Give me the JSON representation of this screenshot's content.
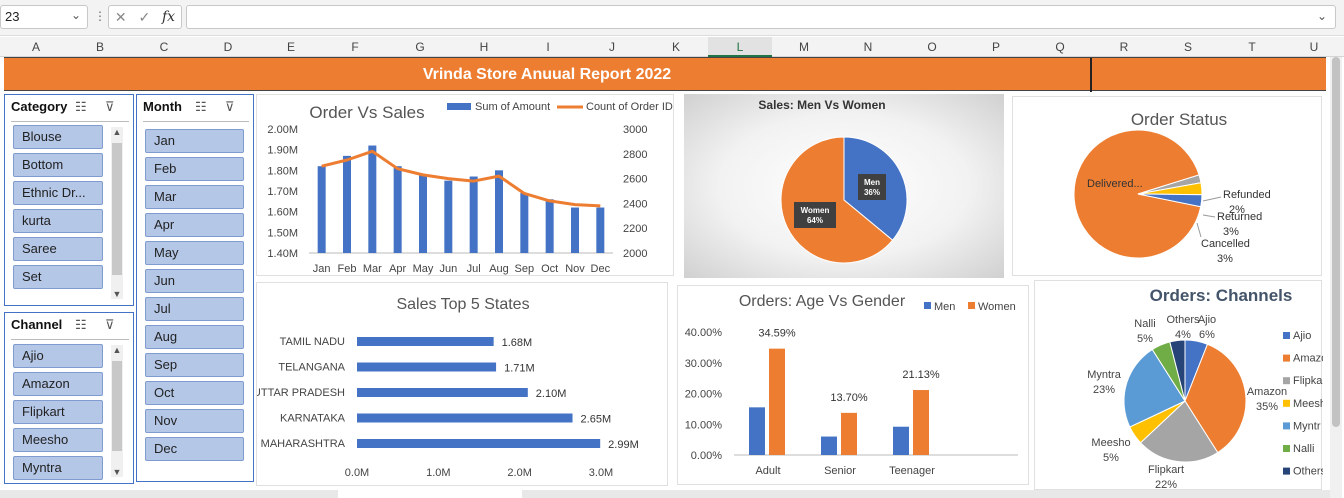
{
  "formula_bar": {
    "name_box": "23",
    "fx_label": "fx",
    "cancel_icon": "✕",
    "enter_icon": "✓",
    "formula": ""
  },
  "columns": [
    "A",
    "B",
    "C",
    "D",
    "E",
    "F",
    "G",
    "H",
    "I",
    "J",
    "K",
    "L",
    "M",
    "N",
    "O",
    "P",
    "Q",
    "R",
    "S",
    "T",
    "U"
  ],
  "selected_column": "L",
  "report_title": "Vrinda Store Anuual Report 2022",
  "slicers": {
    "category": {
      "title": "Category",
      "items": [
        "Blouse",
        "Bottom",
        "Ethnic Dr...",
        "kurta",
        "Saree",
        "Set"
      ]
    },
    "month": {
      "title": "Month",
      "items": [
        "Jan",
        "Feb",
        "Mar",
        "Apr",
        "May",
        "Jun",
        "Jul",
        "Aug",
        "Sep",
        "Oct",
        "Nov",
        "Dec"
      ]
    },
    "channel": {
      "title": "Channel",
      "items": [
        "Ajio",
        "Amazon",
        "Flipkart",
        "Meesho",
        "Myntra"
      ]
    }
  },
  "chart_data": [
    {
      "type": "bar-line",
      "title": "Order Vs Sales",
      "categories": [
        "Jan",
        "Feb",
        "Mar",
        "Apr",
        "May",
        "Jun",
        "Jul",
        "Aug",
        "Sep",
        "Oct",
        "Nov",
        "Dec"
      ],
      "series": [
        {
          "name": "Sum of Amount",
          "axis": "left",
          "values": [
            1.82,
            1.87,
            1.92,
            1.82,
            1.78,
            1.75,
            1.77,
            1.8,
            1.69,
            1.66,
            1.62,
            1.62
          ]
        },
        {
          "name": "Count of Order ID",
          "axis": "right",
          "values": [
            2700,
            2750,
            2820,
            2680,
            2630,
            2600,
            2580,
            2620,
            2480,
            2420,
            2390,
            2380
          ]
        }
      ],
      "left_ticks": [
        "2.00M",
        "1.90M",
        "1.80M",
        "1.70M",
        "1.60M",
        "1.50M",
        "1.40M"
      ],
      "right_ticks": [
        "3000",
        "2800",
        "2600",
        "2400",
        "2200",
        "2000"
      ],
      "ylim_left": [
        1.4,
        2.0
      ],
      "ylim_right": [
        2000,
        3000
      ],
      "colors": {
        "bar": "#4472c4",
        "line": "#ed7d31"
      }
    },
    {
      "type": "pie",
      "title": "Sales: Men Vs Women",
      "slices": [
        {
          "label": "Men",
          "pct": "36%",
          "value": 36
        },
        {
          "label": "Women",
          "pct": "64%",
          "value": 64
        }
      ],
      "colors": [
        "#4472c4",
        "#ed7d31"
      ]
    },
    {
      "type": "pie",
      "title": "Order Status",
      "slices": [
        {
          "label": "Delivered...",
          "pct": "",
          "value": 92
        },
        {
          "label": "Refunded",
          "pct": "2%",
          "value": 2
        },
        {
          "label": "Returned",
          "pct": "3%",
          "value": 3
        },
        {
          "label": "Cancelled",
          "pct": "3%",
          "value": 3
        }
      ],
      "colors": [
        "#ed7d31",
        "#a5a5a5",
        "#ffc000",
        "#4472c4"
      ]
    },
    {
      "type": "bar",
      "orientation": "horizontal",
      "title": "Sales Top 5 States",
      "categories": [
        "TAMIL NADU",
        "TELANGANA",
        "UTTAR PRADESH",
        "KARNATAKA",
        "MAHARASHTRA"
      ],
      "values": [
        1.68,
        1.71,
        2.1,
        2.65,
        2.99
      ],
      "labels": [
        "1.68M",
        "1.71M",
        "2.10M",
        "2.65M",
        "2.99M"
      ],
      "x_ticks": [
        "0.0M",
        "1.0M",
        "2.0M",
        "3.0M"
      ],
      "xlim": [
        0,
        3.0
      ],
      "color": "#4472c4"
    },
    {
      "type": "bar",
      "title": "Orders: Age Vs Gender",
      "categories": [
        "Adult",
        "Senior",
        "Teenager"
      ],
      "series": [
        {
          "name": "Men",
          "values": [
            15.5,
            6.0,
            9.2
          ],
          "labels": [
            "",
            "",
            ""
          ]
        },
        {
          "name": "Women",
          "values": [
            34.59,
            13.7,
            21.13
          ],
          "labels": [
            "34.59%",
            "13.70%",
            "21.13%"
          ]
        }
      ],
      "y_ticks": [
        "40.00%",
        "30.00%",
        "20.00%",
        "10.00%",
        "0.00%"
      ],
      "ylim": [
        0,
        40
      ],
      "colors": [
        "#4472c4",
        "#ed7d31"
      ]
    },
    {
      "type": "pie",
      "title": "Orders: Channels",
      "slices": [
        {
          "label": "Ajio",
          "pct": "6%",
          "value": 6
        },
        {
          "label": "Amazon",
          "pct": "35%",
          "value": 35
        },
        {
          "label": "Flipkart",
          "pct": "22%",
          "value": 22
        },
        {
          "label": "Meesho",
          "pct": "5%",
          "value": 5
        },
        {
          "label": "Myntra",
          "pct": "23%",
          "value": 23
        },
        {
          "label": "Nalli",
          "pct": "5%",
          "value": 5
        },
        {
          "label": "Others",
          "pct": "4%",
          "value": 4
        }
      ],
      "legend": [
        "Ajio",
        "Amazo",
        "Flipkar",
        "Meesh",
        "Myntr",
        "Nalli",
        "Others"
      ],
      "colors": [
        "#4472c4",
        "#ed7d31",
        "#a5a5a5",
        "#ffc000",
        "#5b9bd5",
        "#70ad47",
        "#264478"
      ]
    }
  ]
}
